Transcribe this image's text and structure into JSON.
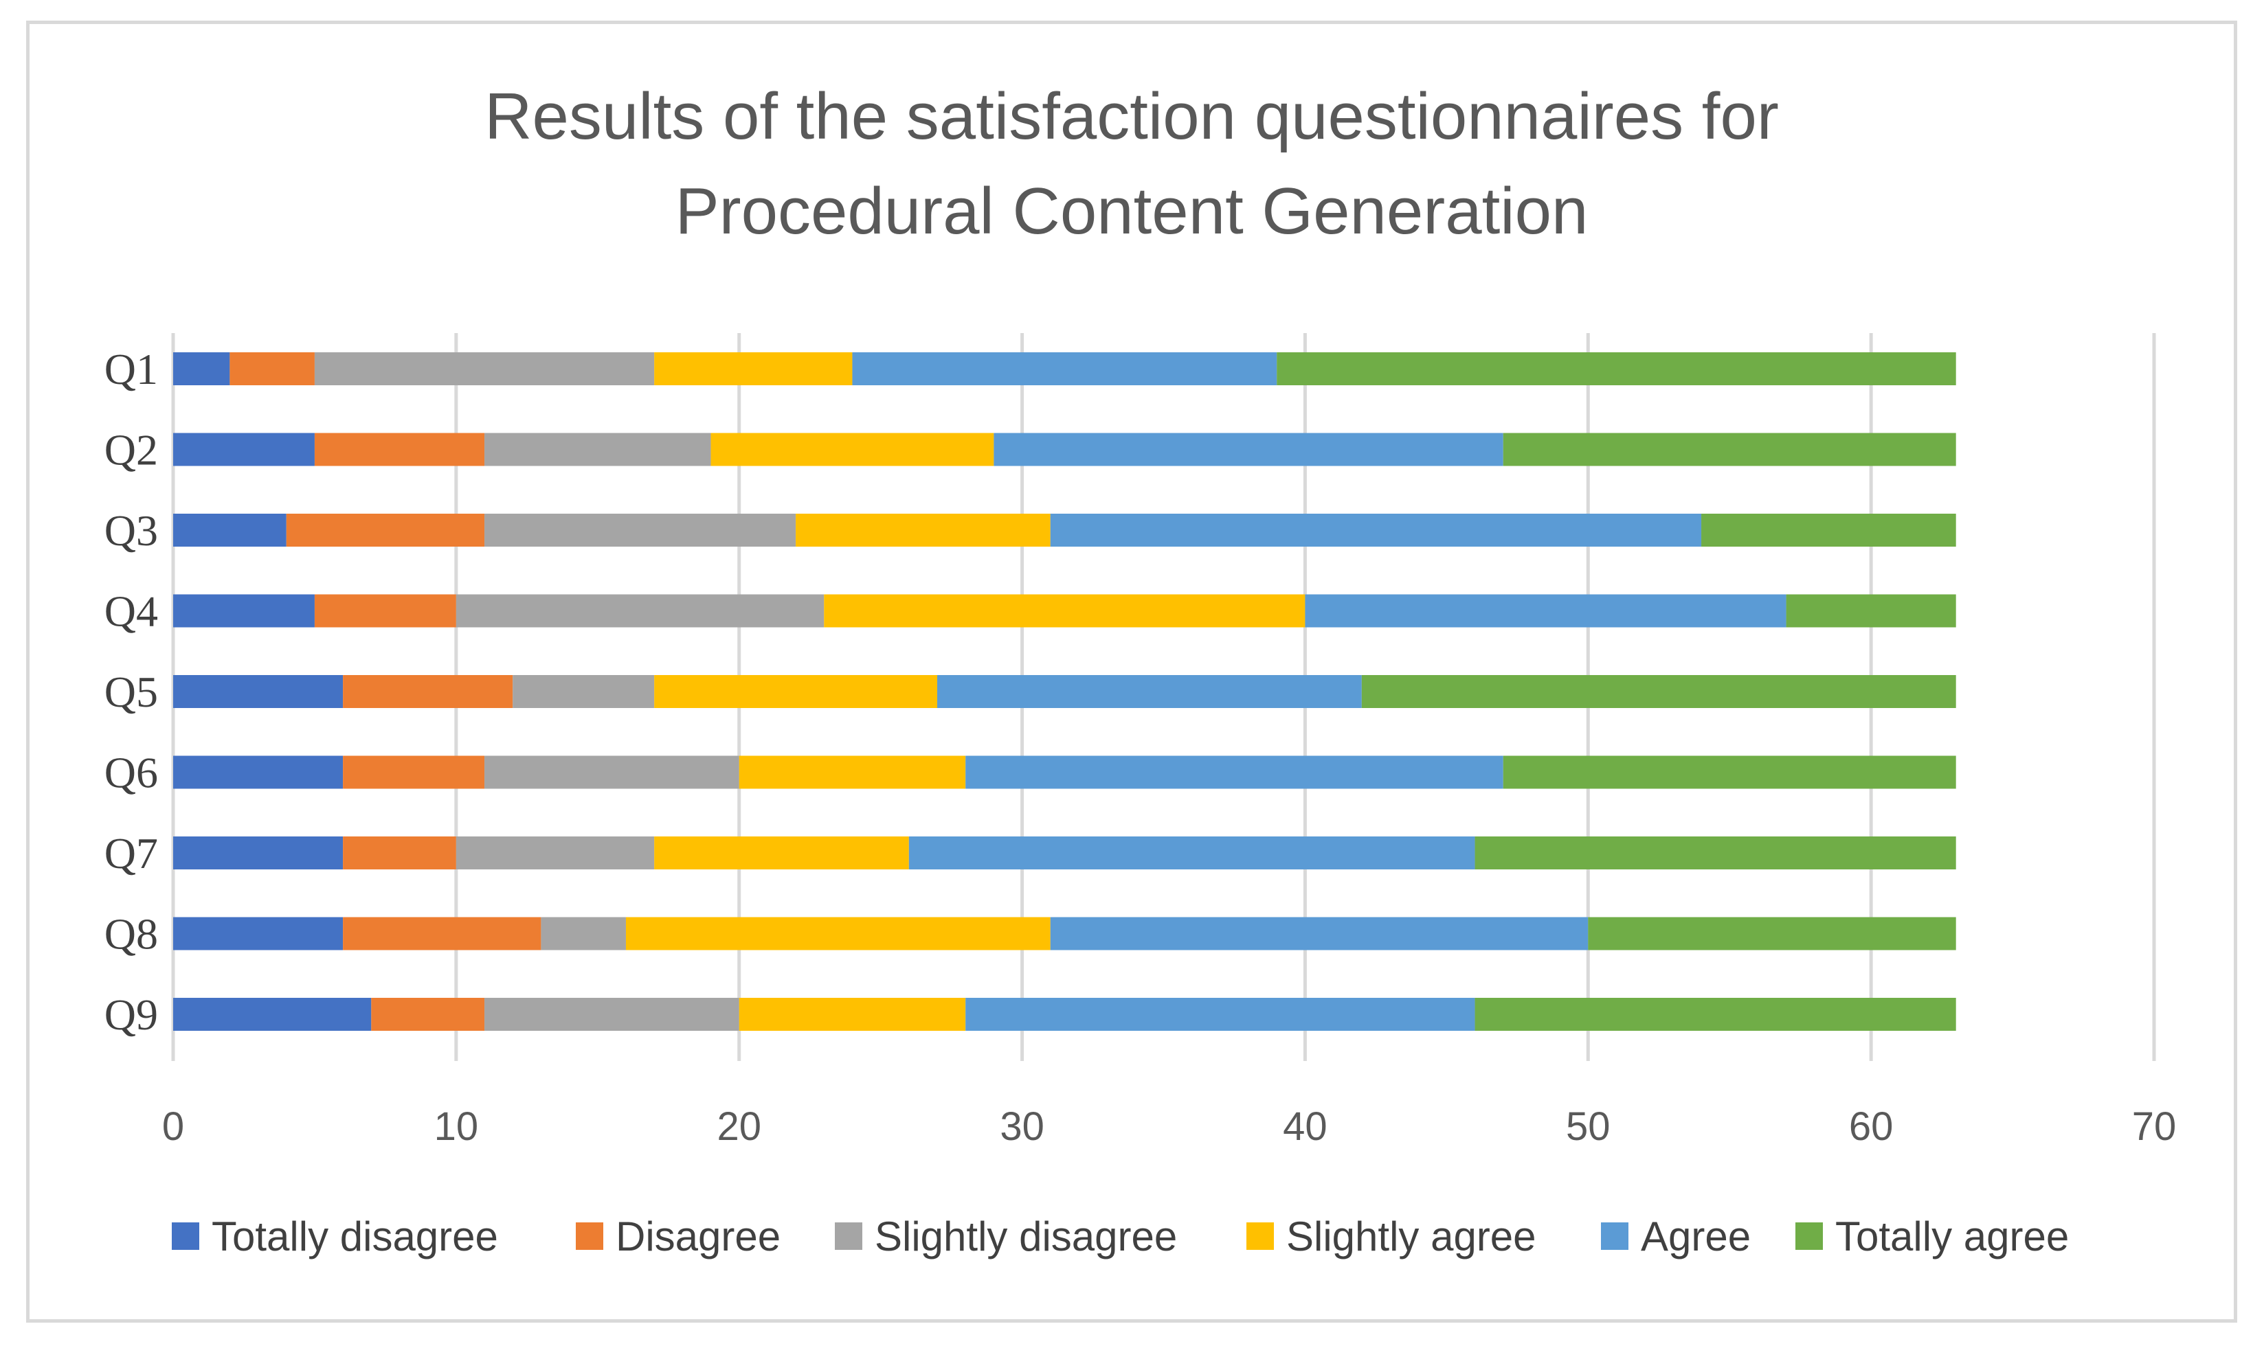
{
  "chart_data": {
    "type": "bar",
    "orientation": "horizontal",
    "stacked": true,
    "title": "Results of the satisfaction  questionnaires for Procedural Content Generation",
    "title_lines": [
      "Results of the satisfaction  questionnaires for",
      "Procedural Content Generation"
    ],
    "categories": [
      "Q1",
      "Q2",
      "Q3",
      "Q4",
      "Q5",
      "Q6",
      "Q7",
      "Q8",
      "Q9"
    ],
    "series": [
      {
        "name": "Totally disagree",
        "color": "#4472C4",
        "values": [
          2,
          5,
          4,
          5,
          6,
          6,
          6,
          6,
          7
        ]
      },
      {
        "name": "Disagree",
        "color": "#ED7D31",
        "values": [
          3,
          6,
          7,
          5,
          6,
          5,
          4,
          7,
          4
        ]
      },
      {
        "name": "Slightly disagree",
        "color": "#A5A5A5",
        "values": [
          12,
          8,
          11,
          13,
          5,
          9,
          7,
          3,
          9
        ]
      },
      {
        "name": "Slightly agree",
        "color": "#FFC000",
        "values": [
          7,
          10,
          9,
          17,
          10,
          8,
          9,
          15,
          8
        ]
      },
      {
        "name": "Agree",
        "color": "#5B9BD5",
        "values": [
          15,
          18,
          23,
          17,
          15,
          19,
          20,
          19,
          18
        ]
      },
      {
        "name": "Totally agree",
        "color": "#70AD47",
        "values": [
          24,
          16,
          9,
          6,
          21,
          16,
          17,
          13,
          17
        ]
      }
    ],
    "xlim": [
      0,
      70
    ],
    "xticks": [
      "0",
      "10",
      "20",
      "30",
      "40",
      "50",
      "60",
      "70"
    ],
    "xlabel": "",
    "ylabel": "",
    "grid": "vertical",
    "legend_position": "bottom"
  }
}
